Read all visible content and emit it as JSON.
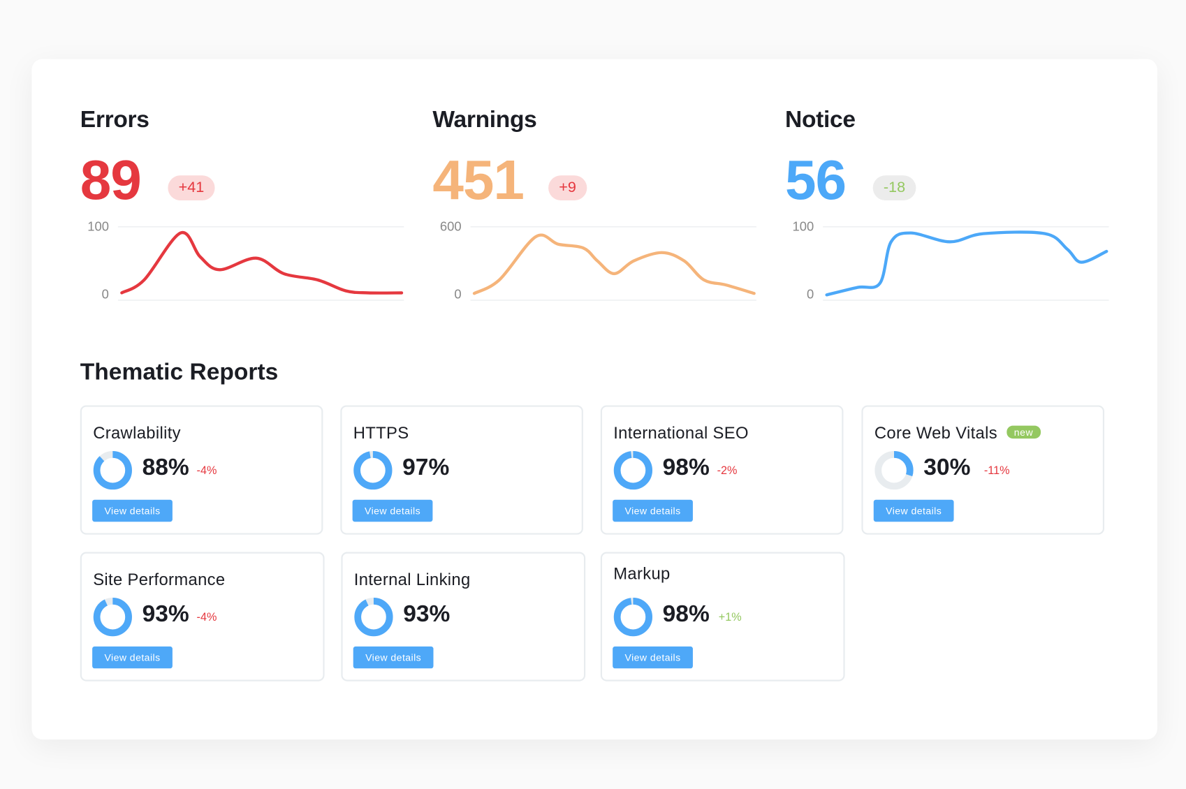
{
  "metrics": [
    {
      "title": "Errors",
      "value": "89",
      "delta": "+41",
      "color": "#e5383f",
      "delta_color": "#e5383f",
      "delta_bg": "#fbdada"
    },
    {
      "title": "Warnings",
      "value": "451",
      "delta": "+9",
      "color": "#f5b47a",
      "delta_color": "#e5383f",
      "delta_bg": "#fbdada"
    },
    {
      "title": "Notice",
      "value": "56",
      "delta": "-18",
      "color": "#4ca8f8",
      "delta_color": "#94c860",
      "delta_bg": "#ececec"
    }
  ],
  "chart_data": [
    {
      "type": "line",
      "title": "Errors",
      "ylim": [
        0,
        100
      ],
      "ytick_labels": [
        "100",
        "0"
      ],
      "color": "#e5383f",
      "x": [
        0,
        8,
        21,
        28,
        35,
        48,
        58,
        70,
        80,
        88,
        100
      ],
      "values": [
        3,
        22,
        91,
        56,
        37,
        54,
        31,
        22,
        6,
        3,
        3
      ]
    },
    {
      "type": "line",
      "title": "Warnings",
      "ylim": [
        0,
        600
      ],
      "ytick_labels": [
        "600",
        "0"
      ],
      "color": "#f5b47a",
      "x": [
        0,
        9,
        22,
        30,
        39,
        44,
        50,
        57,
        67,
        75,
        82,
        90,
        100
      ],
      "values": [
        13,
        133,
        513,
        447,
        413,
        300,
        187,
        300,
        373,
        300,
        133,
        87,
        13
      ]
    },
    {
      "type": "line",
      "title": "Notice",
      "ylim": [
        0,
        100
      ],
      "ytick_labels": [
        "100",
        "0"
      ],
      "color": "#4ca8f8",
      "x": [
        0,
        11,
        19,
        23,
        30,
        44,
        56,
        78,
        86,
        91,
        100
      ],
      "values": [
        0,
        11,
        17,
        78,
        91,
        78,
        90,
        90,
        67,
        48,
        64
      ]
    }
  ],
  "section_title": "Thematic Reports",
  "reports": [
    {
      "title": "Crawlability",
      "percent": 88,
      "percent_label": "88%",
      "change": "-4%",
      "change_color": "#e5383f",
      "button": "View details"
    },
    {
      "title": "HTTPS",
      "percent": 97,
      "percent_label": "97%",
      "change": "",
      "change_color": "#e5383f",
      "button": "View details"
    },
    {
      "title": "International SEO",
      "percent": 98,
      "percent_label": "98%",
      "change": "-2%",
      "change_color": "#e5383f",
      "button": "View details"
    },
    {
      "title": "Core Web Vitals",
      "badge": "new",
      "percent": 30,
      "percent_label": "30%",
      "change": "-11%",
      "change_color": "#e5383f",
      "button": "View details"
    },
    {
      "title": "Site Performance",
      "percent": 93,
      "percent_label": "93%",
      "change": "-4%",
      "change_color": "#e5383f",
      "button": "View details"
    },
    {
      "title": "Internal Linking",
      "percent": 93,
      "percent_label": "93%",
      "change": "",
      "change_color": "#e5383f",
      "button": "View details"
    },
    {
      "title": "Markup",
      "percent": 98,
      "percent_label": "98%",
      "change": "+1%",
      "change_color": "#94c860",
      "button": "View details"
    }
  ],
  "colors": {
    "accent": "#4ea8f8",
    "donut_track": "#e8ecef"
  }
}
